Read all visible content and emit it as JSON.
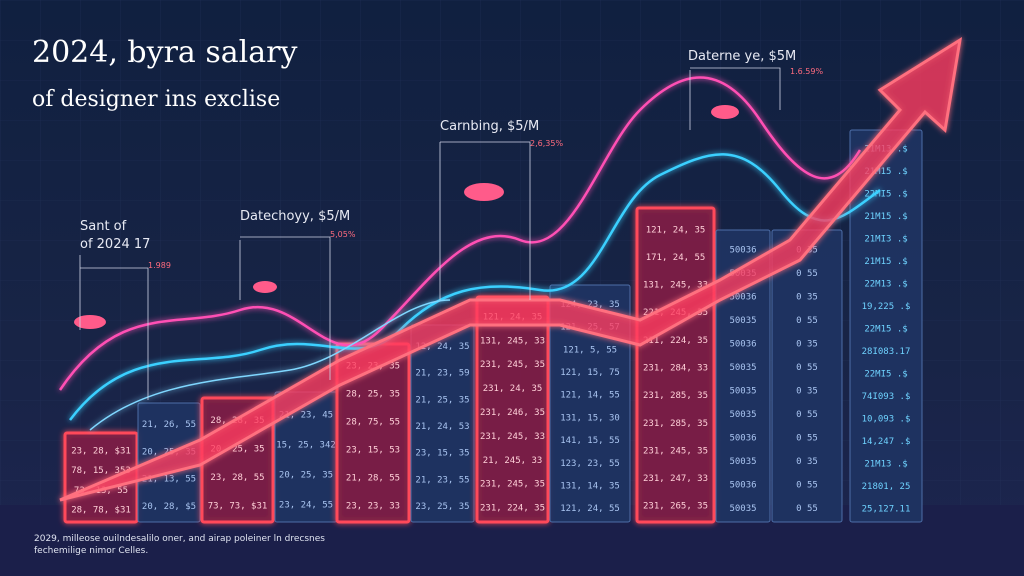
{
  "header": {
    "title": "2024, byra salary",
    "subtitle": "of designer ins exclise"
  },
  "annotations": [
    {
      "label": [
        "Sant of",
        "of 2024 17"
      ],
      "value": "1.989"
    },
    {
      "label": [
        "Datechoyy, $5/M"
      ],
      "value": "5,05%"
    },
    {
      "label": [
        "Carnbing, $5/M"
      ],
      "value": "2,6,35%"
    },
    {
      "label": [
        "Daterne ye, $5M"
      ],
      "value": "1.6.59%"
    }
  ],
  "columns": [
    {
      "lines": [
        "23, 28, $31",
        "78, 15, 353",
        "73, 13, 55",
        "28, 78, $31"
      ]
    },
    {
      "lines": [
        "21, 26, 55",
        "20, 25, 35",
        "21, 13, 55",
        "20, 28, $5"
      ]
    },
    {
      "lines": [
        "28, 28, 35",
        "20, 25, 35",
        "23, 28, 55",
        "73, 73, $31"
      ]
    },
    {
      "lines": [
        "21, 23, 45",
        "15, 25, 342",
        "20, 25, 35",
        "23, 24, 55"
      ]
    },
    {
      "lines": [
        "23, 23, 35",
        "28, 25, 35",
        "28, 75, 55",
        "23, 15, 53",
        "21, 28, 55",
        "23, 23, 33"
      ]
    },
    {
      "lines": [
        "12, 24, 35",
        "21, 23, 59",
        "21, 25, 35",
        "21, 24, 53",
        "23, 15, 35",
        "21, 23, 55",
        "23, 25, 35"
      ]
    },
    {
      "lines": [
        "121, 24, 35",
        "131, 245, 33",
        "231, 245, 35",
        "231, 24, 35",
        "231, 246, 35",
        "231, 245, 33",
        "21, 245, 33",
        "231, 245, 35",
        "231, 224, 35"
      ]
    },
    {
      "lines": [
        "124, 23, 35",
        "121, 25, 57",
        "121, 5, 55",
        "121, 15, 75",
        "121, 14, 55",
        "131, 15, 30",
        "141, 15, 55",
        "123, 23, 55",
        "131, 14, 35",
        "121, 24, 55"
      ]
    },
    {
      "lines": [
        "121, 24, 35",
        "171, 24, 55",
        "131, 245, 33",
        "221, 245, 35",
        "211, 224, 35",
        "231, 284, 33",
        "231, 285, 35",
        "231, 285, 35",
        "231, 245, 35",
        "231, 247, 33",
        "231, 265, 35"
      ]
    },
    {
      "lines": [
        "50036",
        "50035",
        "50036",
        "50035",
        "50036",
        "50035",
        "50035",
        "50035",
        "50036",
        "50035",
        "50036",
        "50035"
      ]
    },
    {
      "lines": [
        "0 35",
        "0 55",
        "0 35",
        "0 55",
        "0 35",
        "0 55",
        "0 35",
        "0 55",
        "0 55",
        "0 35",
        "0 55",
        "0 55"
      ]
    },
    {
      "lines": [
        "21M13 .$",
        "21M15 .$",
        "22MI5 .$",
        "21M15 .$",
        "21MI3 .$",
        "21M15 .$",
        "22M13 .$",
        "19,225 .$",
        "22M15 .$",
        "28I083.17",
        "22MI5 .$",
        "74I093 .$",
        "10,093 .$",
        "14,247 .$",
        "21M13 .$",
        "21801, 25",
        "25,127.11"
      ]
    }
  ],
  "footer": [
    "2029, milleose ouilndesalilo oner, and airap poleiner ln drecsnes",
    "fechemilige nimor Celles."
  ]
}
